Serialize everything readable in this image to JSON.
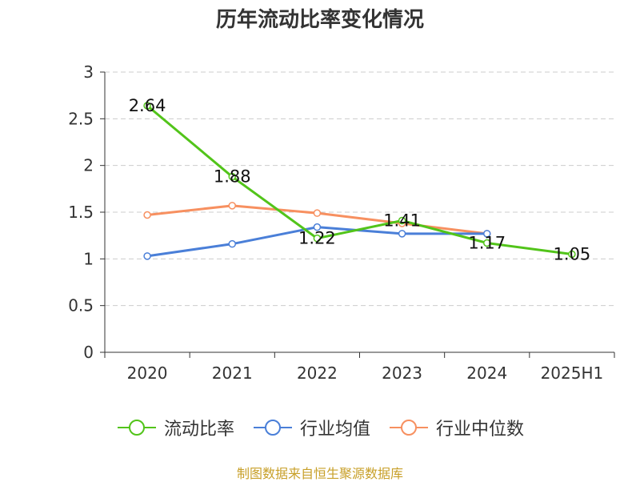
{
  "title": "历年流动比率变化情况",
  "source": "制图数据来自恒生聚源数据库",
  "chart_data": {
    "type": "line",
    "title": "历年流动比率变化情况",
    "xlabel": "",
    "ylabel": "",
    "categories": [
      "2020",
      "2021",
      "2022",
      "2023",
      "2024",
      "2025H1"
    ],
    "ylim": [
      0,
      3
    ],
    "yticks": [
      0,
      0.5,
      1,
      1.5,
      2,
      2.5,
      3
    ],
    "ytick_labels": [
      "0",
      "0.5",
      "1",
      "1.5",
      "2",
      "2.5",
      "3"
    ],
    "grid": true,
    "legend_position": "bottom",
    "series": [
      {
        "name": "流动比率",
        "color": "#52c41a",
        "values": [
          2.64,
          1.88,
          1.22,
          1.41,
          1.17,
          1.05
        ],
        "labels": [
          "2.64",
          "1.88",
          "1.22",
          "1.41",
          "1.17",
          "1.05"
        ]
      },
      {
        "name": "行业均值",
        "color": "#4a7fd8",
        "values": [
          1.03,
          1.16,
          1.34,
          1.27,
          1.27,
          null
        ]
      },
      {
        "name": "行业中位数",
        "color": "#f79060",
        "values": [
          1.47,
          1.57,
          1.49,
          1.38,
          1.27,
          null
        ]
      }
    ]
  }
}
